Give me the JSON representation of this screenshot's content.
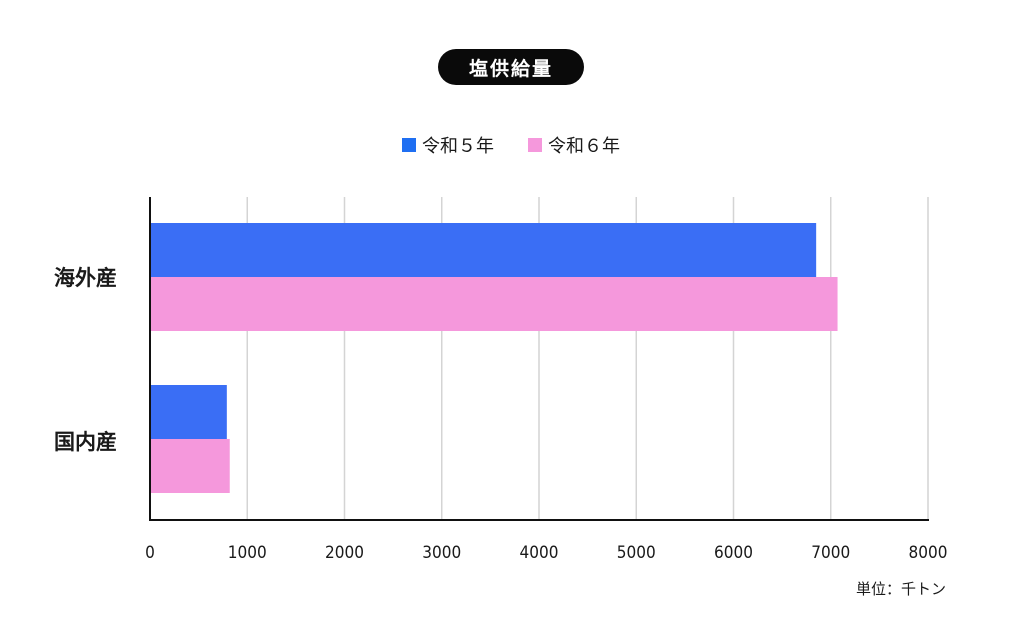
{
  "title": "塩供給量",
  "unit_label": "単位：千トン",
  "colors": {
    "series_2023": "#3a6ef5",
    "series_2024": "#f598dc",
    "legend_2023": "#1f6ff2",
    "legend_2024": "#f598dc",
    "grid": "#d4d4d4",
    "axis": "#111111",
    "title_bg": "#0a0a0a"
  },
  "chart_data": {
    "type": "bar",
    "orientation": "horizontal",
    "title": "塩供給量",
    "categories": [
      "海外産",
      "国内産"
    ],
    "series": [
      {
        "name": "令和５年",
        "values": [
          6850,
          790
        ]
      },
      {
        "name": "令和６年",
        "values": [
          7070,
          820
        ]
      }
    ],
    "xlim": [
      0,
      8000
    ],
    "xticks": [
      0,
      1000,
      2000,
      3000,
      4000,
      5000,
      6000,
      7000,
      8000
    ],
    "xtick_labels": [
      "0",
      "1000",
      "2000",
      "3000",
      "4000",
      "5000",
      "6000",
      "7000",
      "8000"
    ],
    "unit": "単位：千トン",
    "grid": true,
    "legend_position": "top-center"
  }
}
